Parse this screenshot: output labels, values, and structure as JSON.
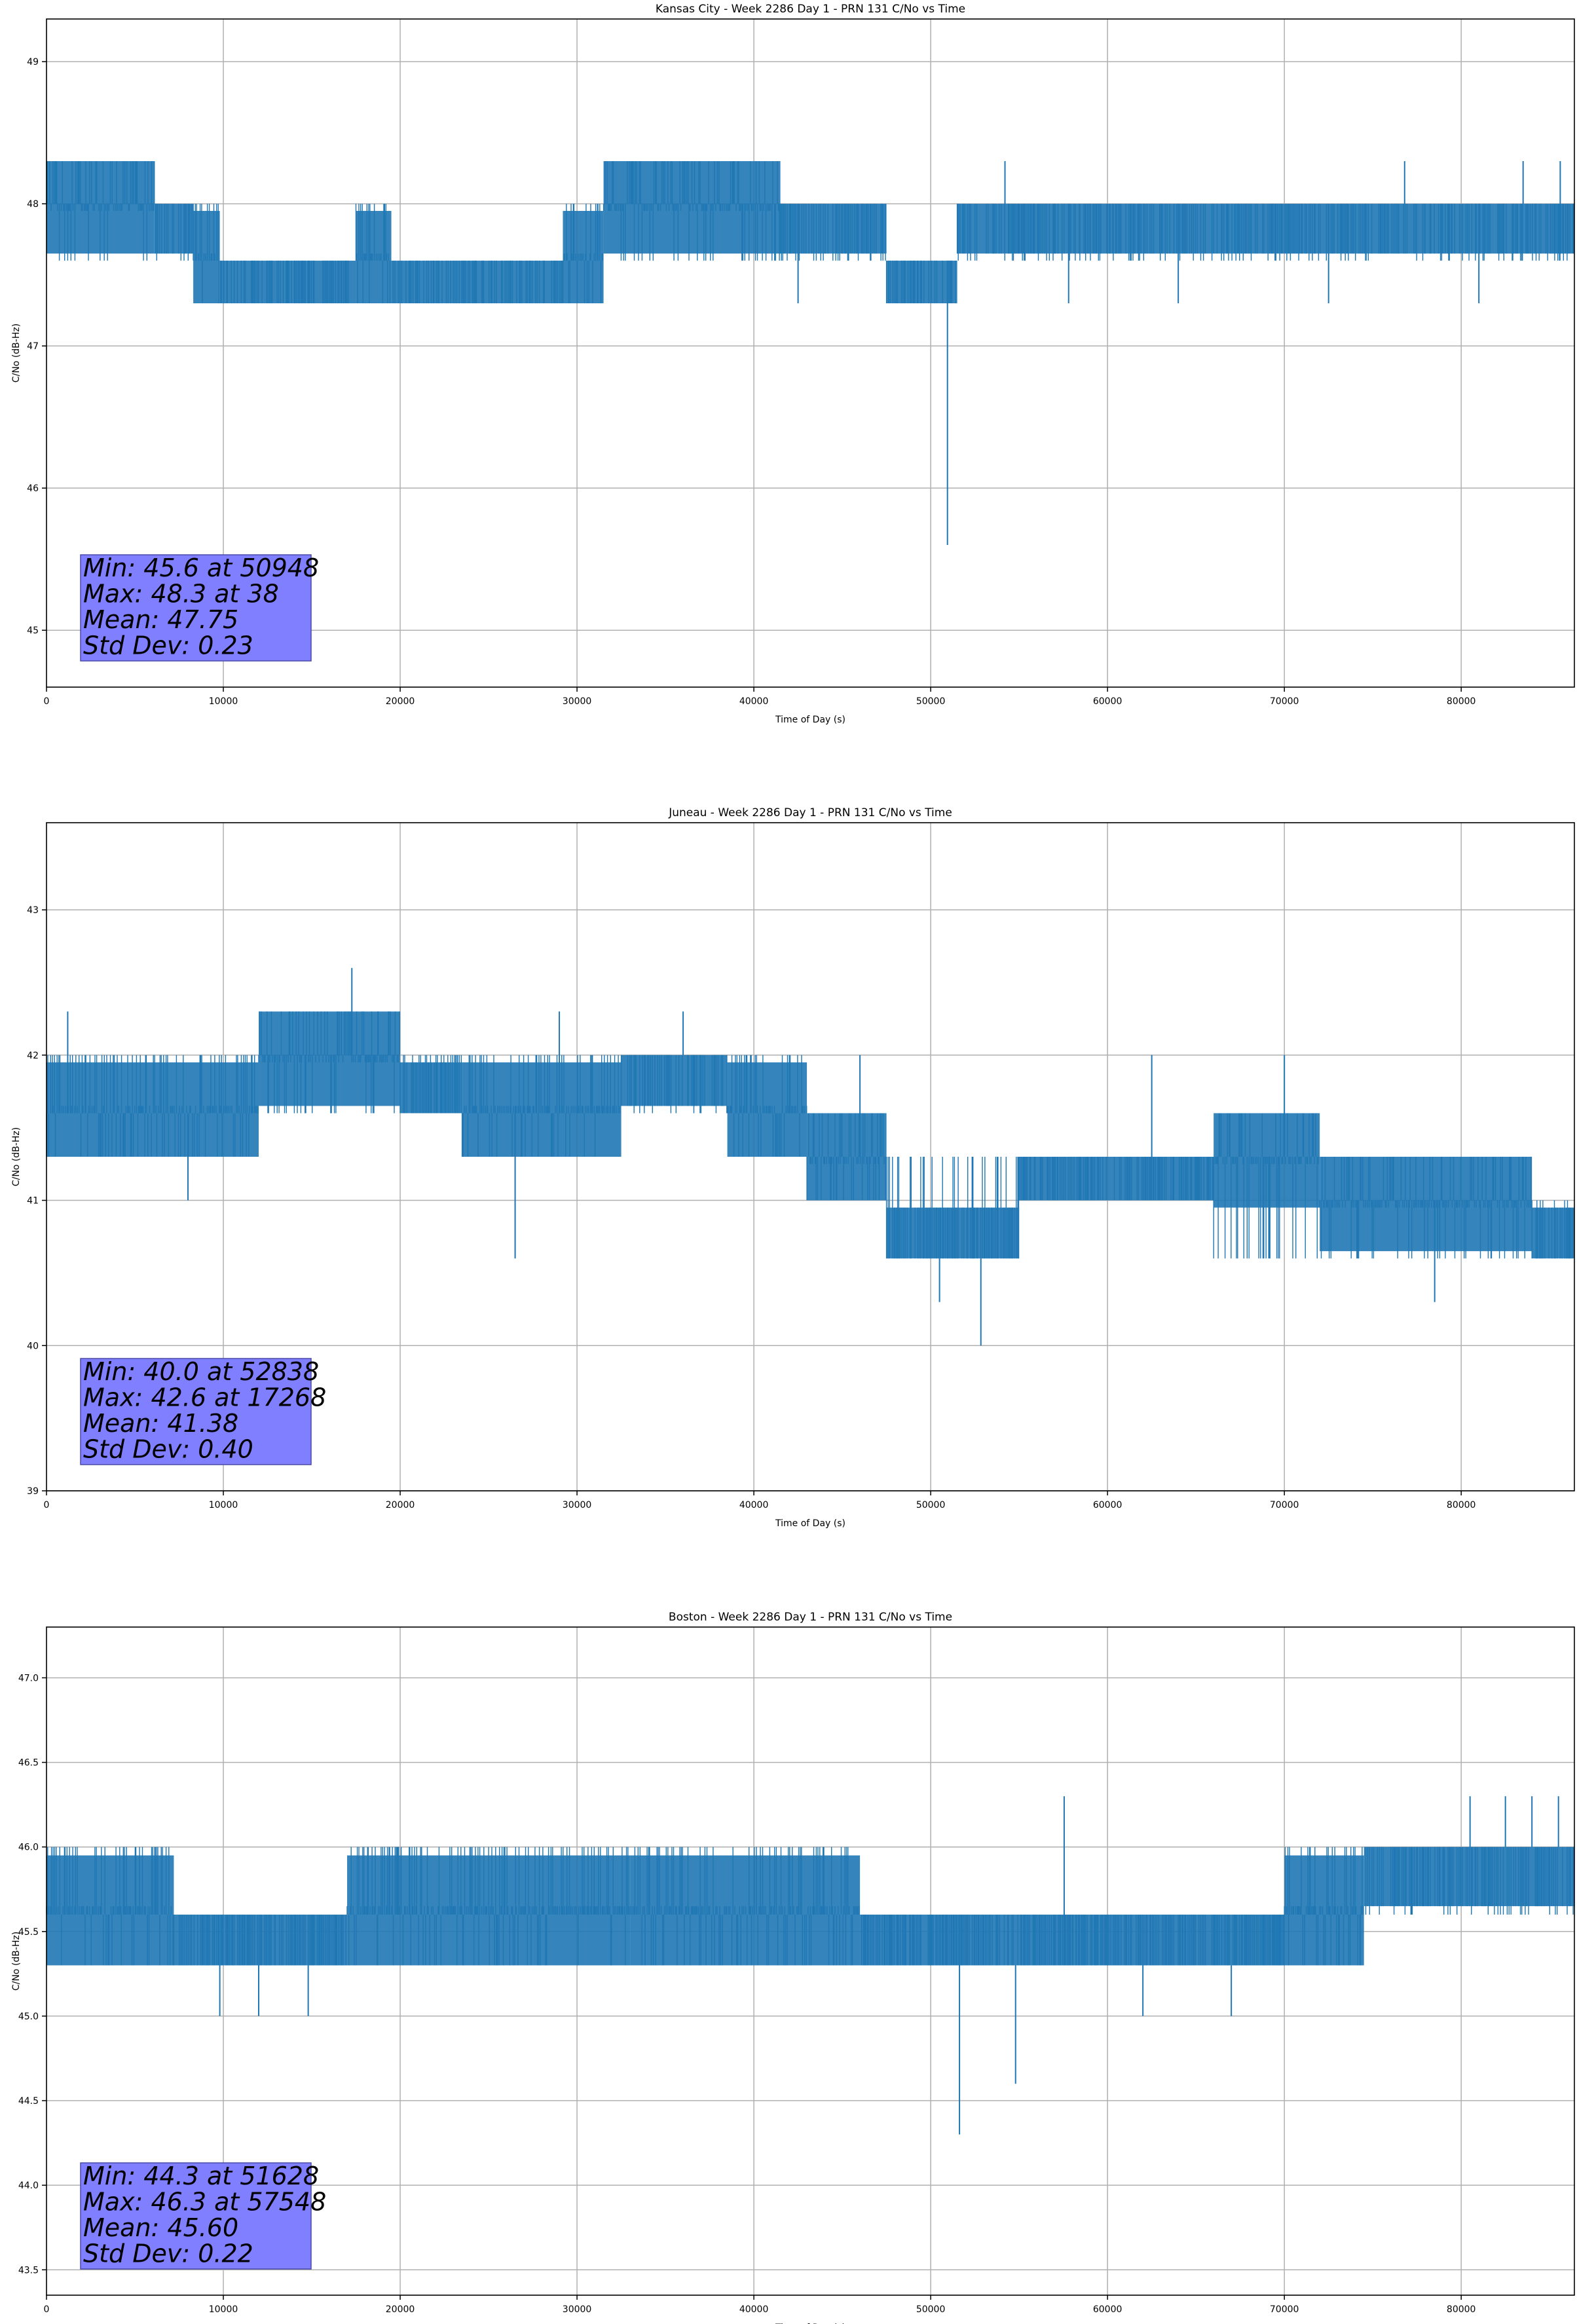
{
  "chart_data": [
    {
      "type": "line",
      "title": "Kansas City - Week 2286 Day 1 - PRN 131 C/No vs Time",
      "xlabel": "Time of Day (s)",
      "ylabel": "C/No (dB-Hz)",
      "xlim": [
        0,
        86400
      ],
      "ylim": [
        44.6,
        49.3
      ],
      "xticks": [
        0,
        10000,
        20000,
        30000,
        40000,
        50000,
        60000,
        70000,
        80000
      ],
      "yticks": [
        45,
        46,
        47,
        48,
        49
      ],
      "ytick_labels": [
        "45",
        "46",
        "47",
        "48",
        "49"
      ],
      "grid": true,
      "series_color": "#1f77b4",
      "stats": [
        "Min: 45.6 at 50948",
        "Max: 48.3 at 38",
        "Mean: 47.75",
        "Std Dev: 0.23"
      ],
      "segments": [
        {
          "x0": 0,
          "x1": 4000,
          "low": 47.6,
          "high": 48.3,
          "baseline": 48.0
        },
        {
          "x0": 4000,
          "x1": 6100,
          "low": 47.6,
          "high": 48.3,
          "baseline": 48.0
        },
        {
          "x0": 6100,
          "x1": 8300,
          "low": 47.6,
          "high": 48.0,
          "baseline": 48.0
        },
        {
          "x0": 8300,
          "x1": 9800,
          "low": 47.3,
          "high": 48.0,
          "baseline": 47.6
        },
        {
          "x0": 9800,
          "x1": 17500,
          "low": 47.3,
          "high": 47.6,
          "baseline": 47.6
        },
        {
          "x0": 17500,
          "x1": 19500,
          "low": 47.3,
          "high": 48.0,
          "baseline": 47.6
        },
        {
          "x0": 19500,
          "x1": 29200,
          "low": 47.3,
          "high": 47.6,
          "baseline": 47.6
        },
        {
          "x0": 29200,
          "x1": 31500,
          "low": 47.3,
          "high": 48.0,
          "baseline": 47.6
        },
        {
          "x0": 31500,
          "x1": 41500,
          "low": 47.6,
          "high": 48.3,
          "baseline": 48.0
        },
        {
          "x0": 41500,
          "x1": 47500,
          "low": 47.6,
          "high": 48.0,
          "baseline": 48.0
        },
        {
          "x0": 47500,
          "x1": 51500,
          "low": 47.3,
          "high": 47.6,
          "baseline": 47.6
        },
        {
          "x0": 51500,
          "x1": 86400,
          "low": 47.6,
          "high": 48.0,
          "baseline": 48.0
        }
      ],
      "spikes": [
        {
          "x": 50948,
          "y": 45.6
        },
        {
          "x": 38,
          "y": 48.3
        },
        {
          "x": 54200,
          "y": 48.3
        },
        {
          "x": 76800,
          "y": 48.3
        },
        {
          "x": 83500,
          "y": 48.3
        },
        {
          "x": 85600,
          "y": 48.3
        },
        {
          "x": 42500,
          "y": 47.3
        },
        {
          "x": 57800,
          "y": 47.3
        },
        {
          "x": 64000,
          "y": 47.3
        },
        {
          "x": 72500,
          "y": 47.3
        },
        {
          "x": 81000,
          "y": 47.3
        }
      ]
    },
    {
      "type": "line",
      "title": "Juneau - Week 2286 Day 1 - PRN 131 C/No vs Time",
      "xlabel": "Time of Day (s)",
      "ylabel": "C/No (dB-Hz)",
      "xlim": [
        0,
        86400
      ],
      "ylim": [
        39.0,
        43.6
      ],
      "xticks": [
        0,
        10000,
        20000,
        30000,
        40000,
        50000,
        60000,
        70000,
        80000
      ],
      "yticks": [
        39,
        40,
        41,
        42,
        43
      ],
      "ytick_labels": [
        "39",
        "40",
        "41",
        "42",
        "43"
      ],
      "grid": true,
      "series_color": "#1f77b4",
      "stats": [
        "Min: 40.0 at 52838",
        "Max: 42.6 at 17268",
        "Mean: 41.38",
        "Std Dev: 0.40"
      ],
      "segments": [
        {
          "x0": 0,
          "x1": 12000,
          "low": 41.3,
          "high": 42.0,
          "baseline": 41.6
        },
        {
          "x0": 12000,
          "x1": 20000,
          "low": 41.6,
          "high": 42.3,
          "baseline": 42.0
        },
        {
          "x0": 20000,
          "x1": 23500,
          "low": 41.6,
          "high": 42.0,
          "baseline": 41.6
        },
        {
          "x0": 23500,
          "x1": 32500,
          "low": 41.3,
          "high": 42.0,
          "baseline": 41.6
        },
        {
          "x0": 32500,
          "x1": 38500,
          "low": 41.6,
          "high": 42.0,
          "baseline": 42.0
        },
        {
          "x0": 38500,
          "x1": 43000,
          "low": 41.3,
          "high": 42.0,
          "baseline": 41.6
        },
        {
          "x0": 43000,
          "x1": 47500,
          "low": 41.0,
          "high": 41.6,
          "baseline": 41.3
        },
        {
          "x0": 47500,
          "x1": 55000,
          "low": 40.6,
          "high": 41.3,
          "baseline": 40.6
        },
        {
          "x0": 55000,
          "x1": 66000,
          "low": 41.0,
          "high": 41.3,
          "baseline": 41.3
        },
        {
          "x0": 66000,
          "x1": 72000,
          "low": 40.6,
          "high": 41.6,
          "baseline": 41.3
        },
        {
          "x0": 72000,
          "x1": 84000,
          "low": 40.6,
          "high": 41.3,
          "baseline": 41.0
        },
        {
          "x0": 84000,
          "x1": 86400,
          "low": 40.6,
          "high": 41.0,
          "baseline": 40.6
        }
      ],
      "spikes": [
        {
          "x": 52838,
          "y": 40.0
        },
        {
          "x": 17268,
          "y": 42.6
        },
        {
          "x": 1200,
          "y": 42.3
        },
        {
          "x": 26500,
          "y": 40.6
        },
        {
          "x": 8000,
          "y": 41.0
        },
        {
          "x": 29000,
          "y": 42.3
        },
        {
          "x": 36000,
          "y": 42.3
        },
        {
          "x": 46000,
          "y": 42.0
        },
        {
          "x": 62500,
          "y": 42.0
        },
        {
          "x": 70000,
          "y": 42.0
        },
        {
          "x": 50500,
          "y": 40.3
        },
        {
          "x": 78500,
          "y": 40.3
        }
      ]
    },
    {
      "type": "line",
      "title": "Boston - Week 2286 Day 1 - PRN 131 C/No vs Time",
      "xlabel": "Time of Day (s)",
      "ylabel": "C/No (dB-Hz)",
      "xlim": [
        0,
        86400
      ],
      "ylim": [
        43.35,
        47.3
      ],
      "xticks": [
        0,
        10000,
        20000,
        30000,
        40000,
        50000,
        60000,
        70000,
        80000
      ],
      "yticks": [
        43.5,
        44.0,
        44.5,
        45.0,
        45.5,
        46.0,
        46.5,
        47.0
      ],
      "ytick_labels": [
        "43.5",
        "44.0",
        "44.5",
        "45.0",
        "45.5",
        "46.0",
        "46.5",
        "47.0"
      ],
      "grid": true,
      "series_color": "#1f77b4",
      "stats": [
        "Min: 44.3 at 51628",
        "Max: 46.3 at 57548",
        "Mean: 45.60",
        "Std Dev: 0.22"
      ],
      "segments": [
        {
          "x0": 0,
          "x1": 7200,
          "low": 45.3,
          "high": 46.0,
          "baseline": 45.6
        },
        {
          "x0": 7200,
          "x1": 17000,
          "low": 45.3,
          "high": 45.6,
          "baseline": 45.3
        },
        {
          "x0": 17000,
          "x1": 33000,
          "low": 45.3,
          "high": 46.0,
          "baseline": 45.6
        },
        {
          "x0": 33000,
          "x1": 46000,
          "low": 45.3,
          "high": 46.0,
          "baseline": 45.6
        },
        {
          "x0": 46000,
          "x1": 57000,
          "low": 45.3,
          "high": 45.6,
          "baseline": 45.3
        },
        {
          "x0": 57000,
          "x1": 70000,
          "low": 45.3,
          "high": 45.6,
          "baseline": 45.3
        },
        {
          "x0": 70000,
          "x1": 74500,
          "low": 45.3,
          "high": 46.0,
          "baseline": 45.6
        },
        {
          "x0": 74500,
          "x1": 86400,
          "low": 45.6,
          "high": 46.0,
          "baseline": 46.0
        }
      ],
      "spikes": [
        {
          "x": 51628,
          "y": 44.3
        },
        {
          "x": 57548,
          "y": 46.3
        },
        {
          "x": 54800,
          "y": 44.6
        },
        {
          "x": 9800,
          "y": 45.0
        },
        {
          "x": 12000,
          "y": 45.0
        },
        {
          "x": 14800,
          "y": 45.0
        },
        {
          "x": 62000,
          "y": 45.0
        },
        {
          "x": 67000,
          "y": 45.0
        },
        {
          "x": 80500,
          "y": 46.3
        },
        {
          "x": 82500,
          "y": 46.3
        },
        {
          "x": 84000,
          "y": 46.3
        },
        {
          "x": 85500,
          "y": 46.3
        }
      ]
    }
  ]
}
